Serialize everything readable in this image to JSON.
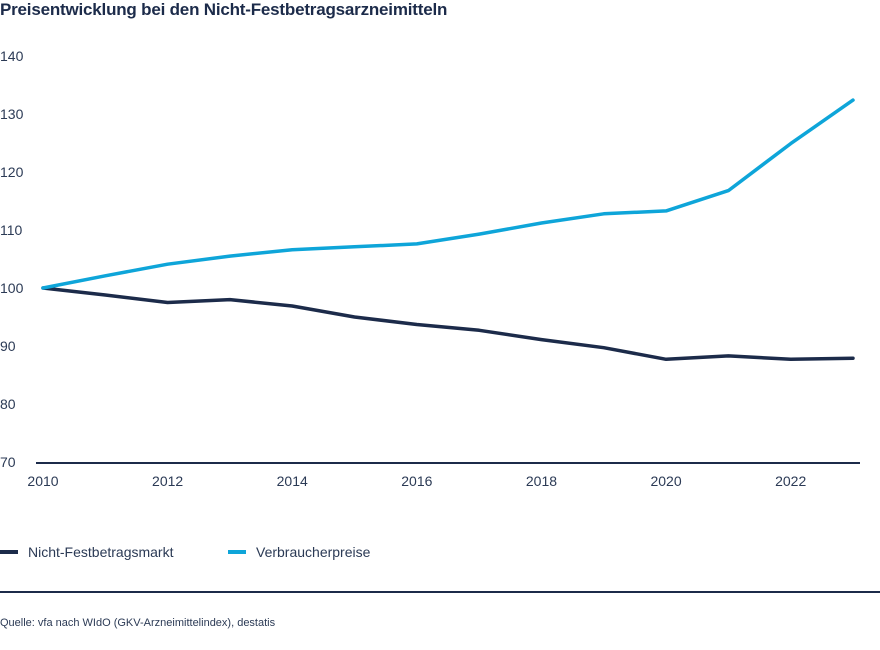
{
  "chart_data": {
    "type": "line",
    "title": "Preisentwicklung bei den Nicht-Festbetragsarzneimitteln",
    "xlabel": "",
    "ylabel": "",
    "xlim": [
      2010,
      2023
    ],
    "ylim": [
      70,
      140
    ],
    "x_ticks": [
      2010,
      2012,
      2014,
      2016,
      2018,
      2020,
      2022
    ],
    "y_ticks": [
      70,
      80,
      90,
      100,
      110,
      120,
      130,
      140
    ],
    "grid": false,
    "legend_position": "bottom",
    "x": [
      2010,
      2011,
      2012,
      2013,
      2014,
      2015,
      2016,
      2017,
      2018,
      2019,
      2020,
      2021,
      2022,
      2023
    ],
    "series": [
      {
        "name": "Nicht-Festbetragsmarkt",
        "color": "#1c2b4a",
        "values": [
          100,
          98.8,
          97.5,
          98,
          96.9,
          95,
          93.7,
          92.7,
          91.1,
          89.7,
          87.7,
          88.3,
          87.7,
          87.9
        ]
      },
      {
        "name": "Verbraucherpreise",
        "color": "#0ea5d9",
        "values": [
          100,
          102.1,
          104.1,
          105.5,
          106.6,
          107.1,
          107.6,
          109.3,
          111.2,
          112.8,
          113.3,
          116.8,
          124.9,
          132.4
        ]
      }
    ]
  },
  "source": "Quelle: vfa nach WIdO (GKV-Arzneimittelindex), destatis"
}
